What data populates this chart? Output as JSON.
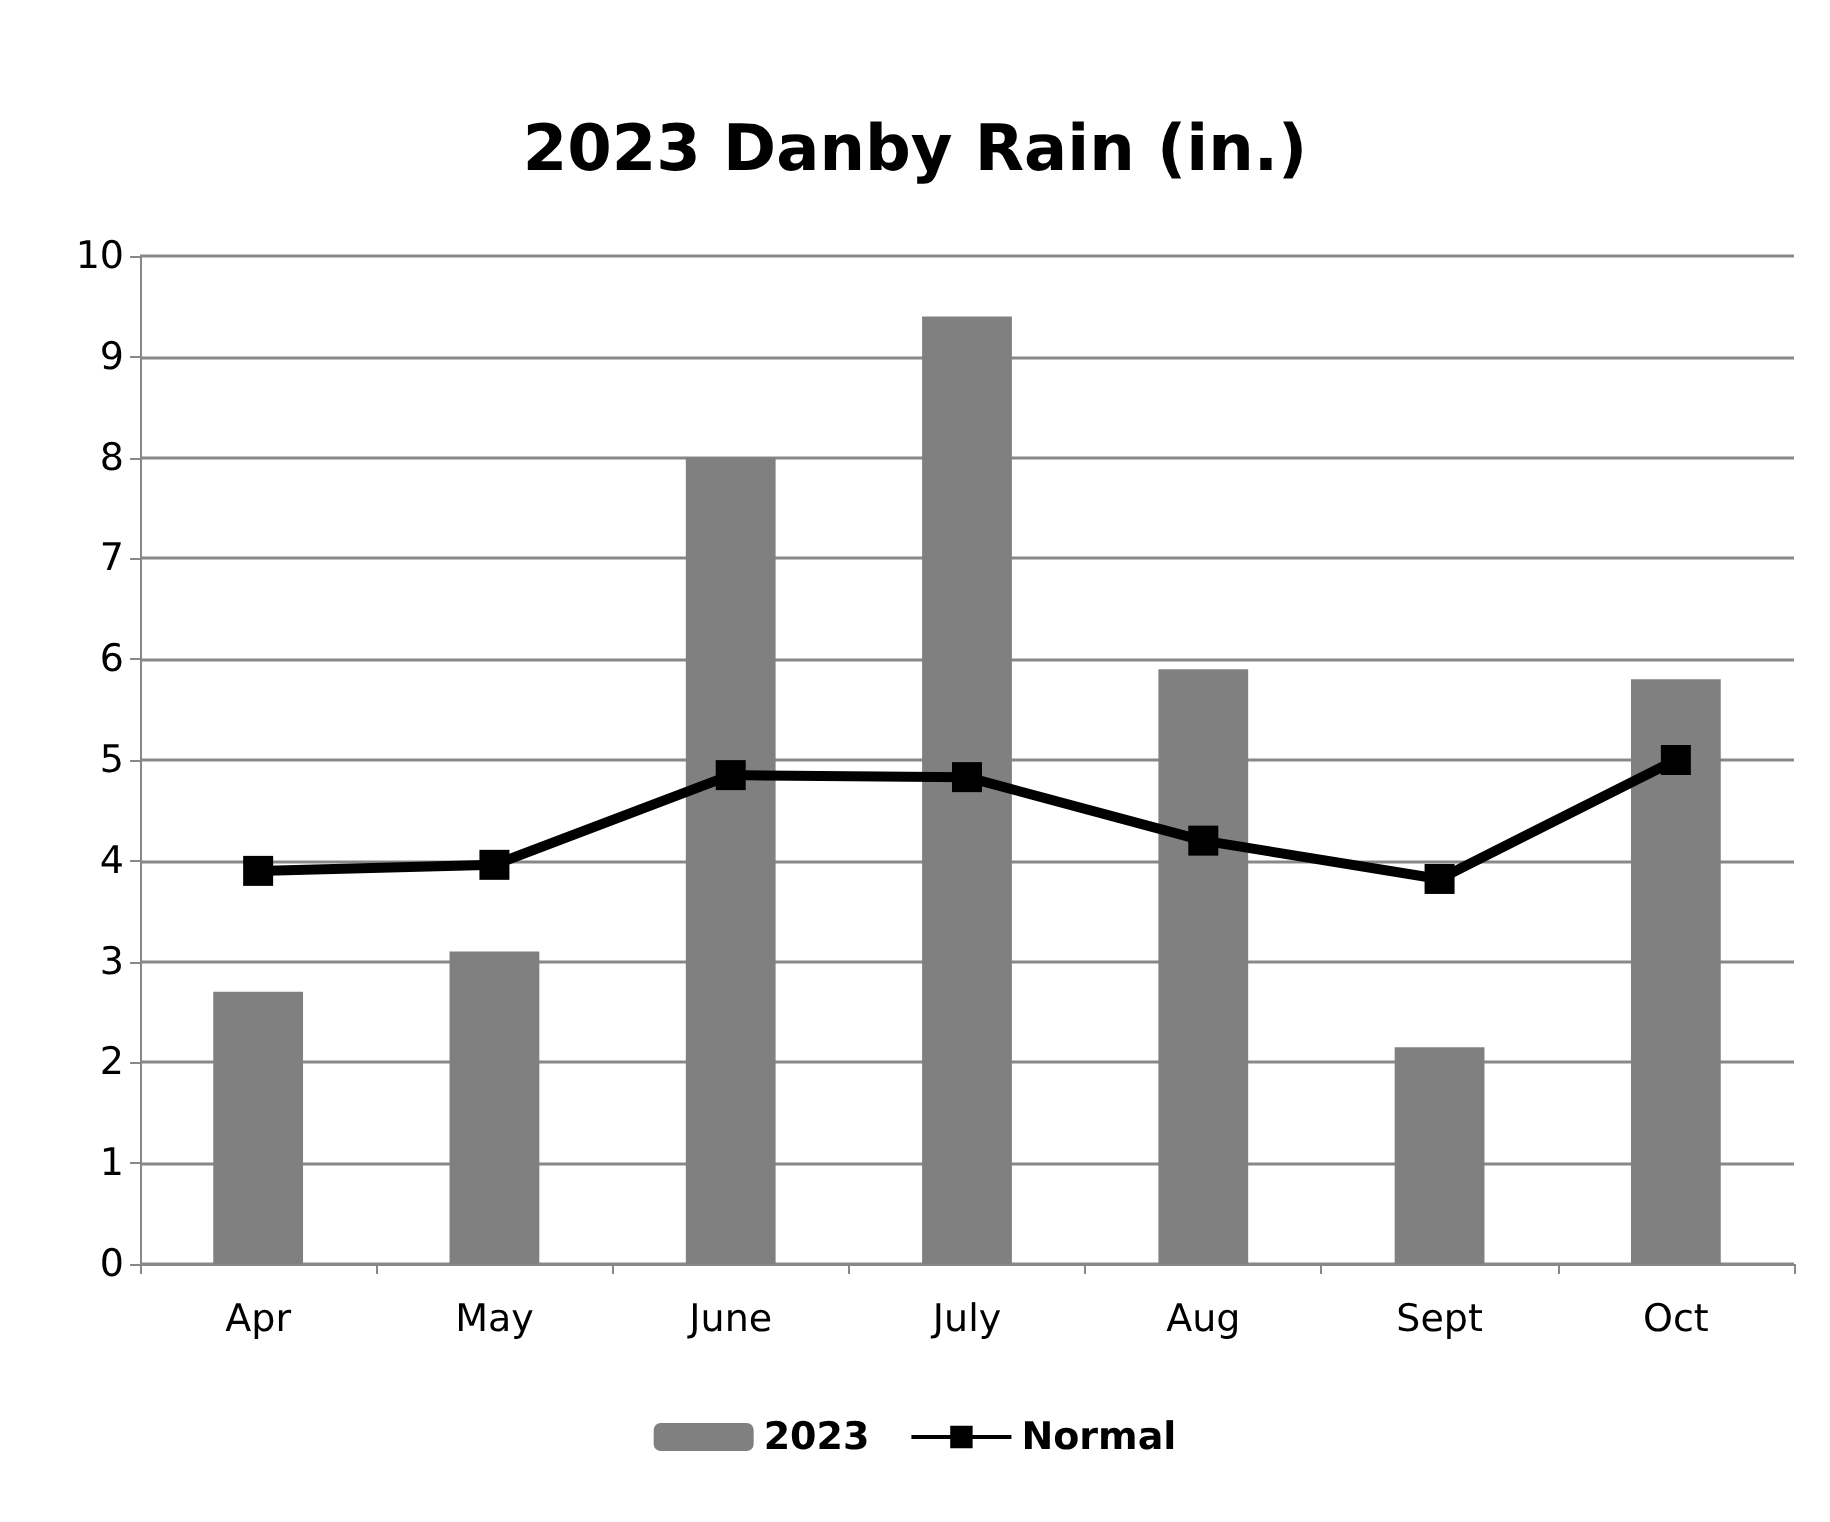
{
  "chart_data": {
    "type": "bar",
    "title": "2023 Danby Rain (in.)",
    "categories": [
      "Apr",
      "May",
      "June",
      "July",
      "Aug",
      "Sept",
      "Oct"
    ],
    "series": [
      {
        "name": "2023",
        "color": "#808080",
        "values": [
          2.7,
          3.1,
          8.0,
          9.4,
          5.9,
          2.15,
          5.8
        ]
      },
      {
        "name": "Normal",
        "type": "line",
        "color": "#000000",
        "marker": "square",
        "values": [
          3.9,
          3.96,
          4.85,
          4.83,
          4.2,
          3.82,
          5.0
        ]
      }
    ],
    "ylim": [
      0,
      10
    ],
    "yticks": [
      0,
      1,
      2,
      3,
      4,
      5,
      6,
      7,
      8,
      9,
      10
    ],
    "grid": "y",
    "legend": "bottom"
  }
}
